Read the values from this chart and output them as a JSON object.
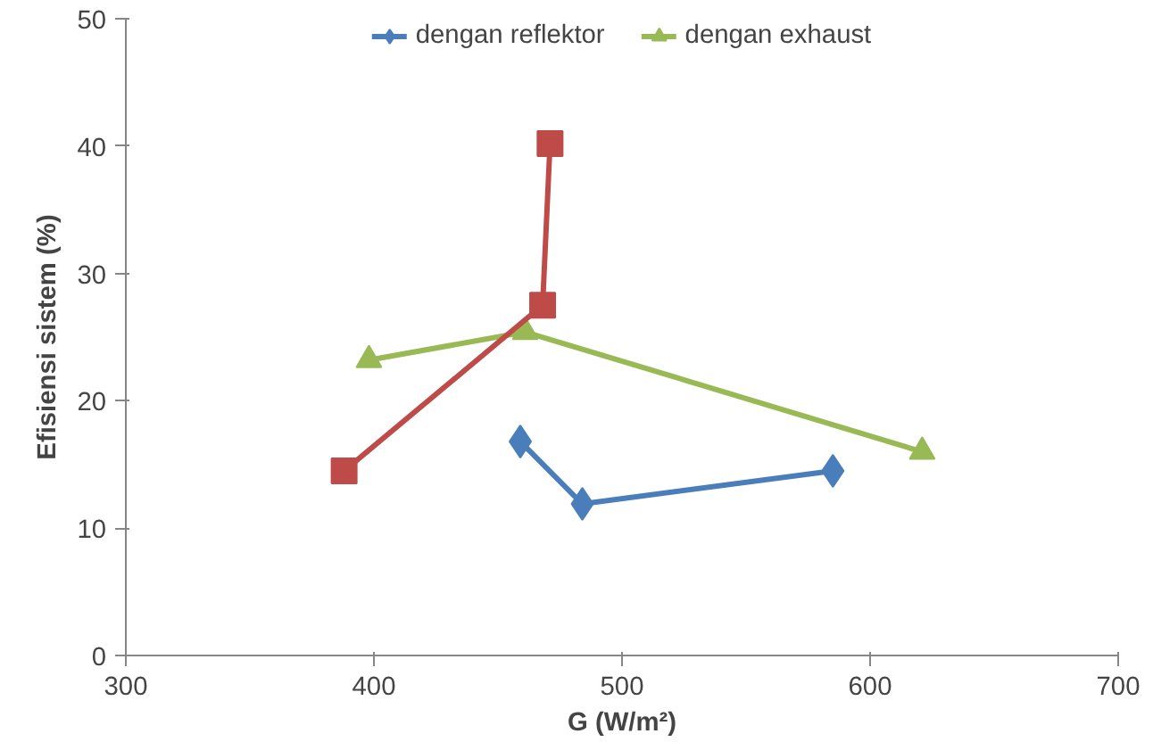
{
  "chart_data": {
    "type": "line",
    "xlabel": "G (W/m²)",
    "ylabel": "Efisiensi sistem (%)",
    "xlim": [
      300,
      700
    ],
    "xticks": [
      300,
      400,
      500,
      600,
      700
    ],
    "ylim": [
      0,
      50
    ],
    "yticks": [
      0,
      10,
      20,
      30,
      40,
      50
    ],
    "grid": false,
    "legend": "top",
    "line_style": "solid",
    "series": [
      {
        "name": "dengan reflektor",
        "color": "#4a7ebb",
        "marker": "diamond",
        "x": [
          459,
          484,
          585
        ],
        "values": [
          16.8,
          11.9,
          14.5
        ]
      },
      {
        "name": "dengan exhaust",
        "color": "#98b954",
        "marker": "triangle",
        "x": [
          398,
          461,
          621
        ],
        "values": [
          23.2,
          25.4,
          16.0
        ]
      },
      {
        "color": "#be4b48",
        "marker": "square",
        "x": [
          388,
          468,
          471
        ],
        "values": [
          14.5,
          27.5,
          40.2
        ]
      }
    ]
  }
}
